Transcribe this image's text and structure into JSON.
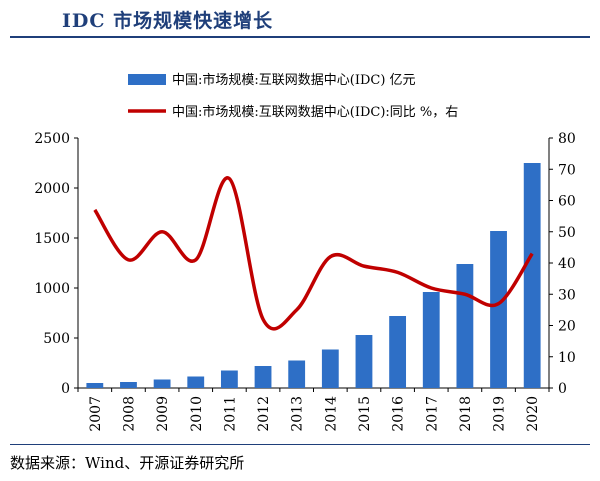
{
  "title": "IDC 市场规模快速增长",
  "source": "数据来源：Wind、开源证券研究所",
  "colors": {
    "bar": "#2e6fc6",
    "line": "#c00000",
    "title": "#1f3f7a"
  },
  "chart_data": {
    "type": "bar+line",
    "categories": [
      "2007",
      "2008",
      "2009",
      "2010",
      "2011",
      "2012",
      "2013",
      "2014",
      "2015",
      "2016",
      "2017",
      "2018",
      "2019",
      "2020"
    ],
    "series": [
      {
        "name": "中国:市场规模:互联网数据中心(IDC) 亿元",
        "type": "bar",
        "axis": "left",
        "values": [
          50,
          60,
          85,
          115,
          175,
          220,
          275,
          385,
          530,
          720,
          960,
          1240,
          1570,
          2250
        ]
      },
      {
        "name": "中国:市场规模:互联网数据中心(IDC):同比 %，右",
        "type": "line",
        "axis": "right",
        "values": [
          57,
          41,
          50,
          41,
          67,
          22,
          25,
          42,
          39,
          37,
          32,
          30,
          27,
          43
        ]
      }
    ],
    "yleft": {
      "lim": [
        0,
        2500
      ],
      "ticks": [
        0,
        500,
        1000,
        1500,
        2000,
        2500
      ]
    },
    "yright": {
      "lim": [
        0,
        80
      ],
      "ticks": [
        0,
        10,
        20,
        30,
        40,
        50,
        60,
        70,
        80
      ]
    },
    "legend": "top-left",
    "grid": false
  }
}
